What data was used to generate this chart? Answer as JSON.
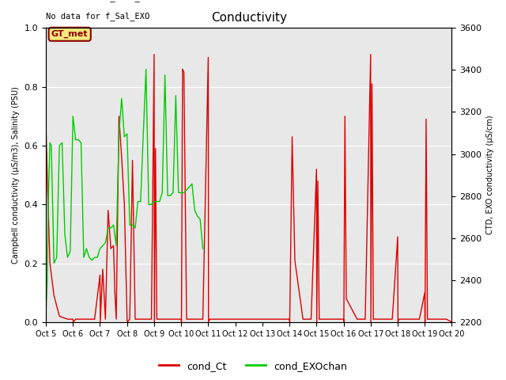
{
  "title": "Conductivity",
  "ylabel_left": "Campbell conductivity (μS/m3), Salinity (PSU)",
  "ylabel_right": "CTD, EXO conductivity (μS/cm)",
  "text_no_data_1": "No data for f_cond_CTD",
  "text_no_data_2": "No data for f_Sal_EXO",
  "gt_met_label": "GT_met",
  "ylim_left": [
    0.0,
    1.0
  ],
  "ylim_right": [
    2200,
    3600
  ],
  "legend_labels": [
    "cond_Ct",
    "cond_EXOchan"
  ],
  "color_red": "#dd0000",
  "color_green": "#00cc00",
  "fig_facecolor": "#ffffff",
  "ax_facecolor": "#e8e8e8",
  "xtick_labels": [
    "Oct 5",
    "Oct 6",
    "Oct 7",
    "Oct 8",
    "Oct 9",
    "Oct 10",
    "Oct 11",
    "Oct 12",
    "Oct 13",
    "Oct 14",
    "Oct 15",
    "Oct 16",
    "Oct 17",
    "Oct 18",
    "Oct 19",
    "Oct 20"
  ],
  "red_x_days": [
    5.0,
    5.05,
    5.15,
    5.3,
    5.5,
    5.8,
    6.0,
    6.01,
    6.1,
    6.2,
    6.5,
    6.8,
    7.0,
    7.01,
    7.1,
    7.2,
    7.3,
    7.4,
    7.5,
    7.55,
    7.6,
    7.7,
    7.8,
    7.9,
    8.0,
    8.01,
    8.1,
    8.2,
    8.3,
    8.5,
    8.7,
    8.9,
    9.0,
    9.01,
    9.05,
    9.1,
    9.15,
    9.2,
    9.3,
    9.5,
    9.8,
    10.0,
    10.01,
    10.05,
    10.1,
    10.2,
    10.3,
    10.5,
    10.6,
    10.8,
    11.0,
    11.01,
    11.05,
    11.1,
    11.5,
    11.8,
    12.0,
    12.1,
    12.3,
    12.5,
    13.0,
    13.5,
    14.0,
    14.01,
    14.1,
    14.2,
    14.5,
    14.8,
    15.0,
    15.01,
    15.05,
    15.1,
    15.5,
    15.8,
    16.0,
    16.01,
    16.05,
    16.1,
    16.5,
    16.8,
    17.0,
    17.01,
    17.05,
    17.1,
    17.5,
    17.8,
    18.0,
    18.01,
    18.05,
    18.1,
    18.5,
    18.8,
    19.0,
    19.01,
    19.05,
    19.1,
    19.5,
    19.8,
    20.0
  ],
  "red_y": [
    0.67,
    0.5,
    0.2,
    0.09,
    0.02,
    0.01,
    0.01,
    0.0,
    0.01,
    0.01,
    0.01,
    0.01,
    0.16,
    0.0,
    0.18,
    0.01,
    0.38,
    0.25,
    0.26,
    0.1,
    0.01,
    0.7,
    0.56,
    0.4,
    0.01,
    0.0,
    0.01,
    0.55,
    0.01,
    0.01,
    0.01,
    0.01,
    0.91,
    0.0,
    0.59,
    0.01,
    0.01,
    0.01,
    0.01,
    0.01,
    0.01,
    0.01,
    0.0,
    0.86,
    0.85,
    0.01,
    0.01,
    0.01,
    0.01,
    0.01,
    0.9,
    0.0,
    0.01,
    0.01,
    0.01,
    0.01,
    0.01,
    0.01,
    0.01,
    0.01,
    0.01,
    0.01,
    0.01,
    0.0,
    0.63,
    0.21,
    0.01,
    0.01,
    0.52,
    0.0,
    0.48,
    0.01,
    0.01,
    0.01,
    0.01,
    0.0,
    0.7,
    0.08,
    0.01,
    0.01,
    0.91,
    0.0,
    0.81,
    0.01,
    0.01,
    0.01,
    0.29,
    0.0,
    0.01,
    0.01,
    0.01,
    0.01,
    0.1,
    0.0,
    0.69,
    0.01,
    0.01,
    0.01,
    0.0
  ],
  "green_x_days": [
    5.0,
    5.05,
    5.1,
    5.15,
    5.2,
    5.3,
    5.4,
    5.5,
    5.6,
    5.7,
    5.8,
    5.9,
    6.0,
    6.1,
    6.2,
    6.3,
    6.4,
    6.5,
    6.6,
    6.7,
    6.8,
    6.9,
    7.0,
    7.1,
    7.2,
    7.3,
    7.4,
    7.5,
    7.6,
    7.7,
    7.8,
    7.9,
    8.0,
    8.1,
    8.2,
    8.3,
    8.4,
    8.5,
    8.6,
    8.7,
    8.8,
    8.9,
    9.0,
    9.1,
    9.2,
    9.3,
    9.4,
    9.5,
    9.6,
    9.7,
    9.8,
    9.9,
    10.0,
    10.1,
    10.2,
    10.3,
    10.4,
    10.5,
    10.6,
    10.7,
    10.8
  ],
  "green_y": [
    0.03,
    0.14,
    0.45,
    0.61,
    0.6,
    0.2,
    0.22,
    0.6,
    0.61,
    0.3,
    0.22,
    0.24,
    0.7,
    0.62,
    0.62,
    0.61,
    0.22,
    0.25,
    0.22,
    0.21,
    0.22,
    0.22,
    0.25,
    0.26,
    0.27,
    0.32,
    0.32,
    0.33,
    0.26,
    0.64,
    0.76,
    0.63,
    0.64,
    0.33,
    0.33,
    0.32,
    0.41,
    0.41,
    0.64,
    0.86,
    0.4,
    0.4,
    0.41,
    0.41,
    0.41,
    0.44,
    0.84,
    0.43,
    0.43,
    0.44,
    0.77,
    0.44,
    0.44,
    0.44,
    0.45,
    0.46,
    0.47,
    0.38,
    0.36,
    0.35,
    0.25
  ]
}
